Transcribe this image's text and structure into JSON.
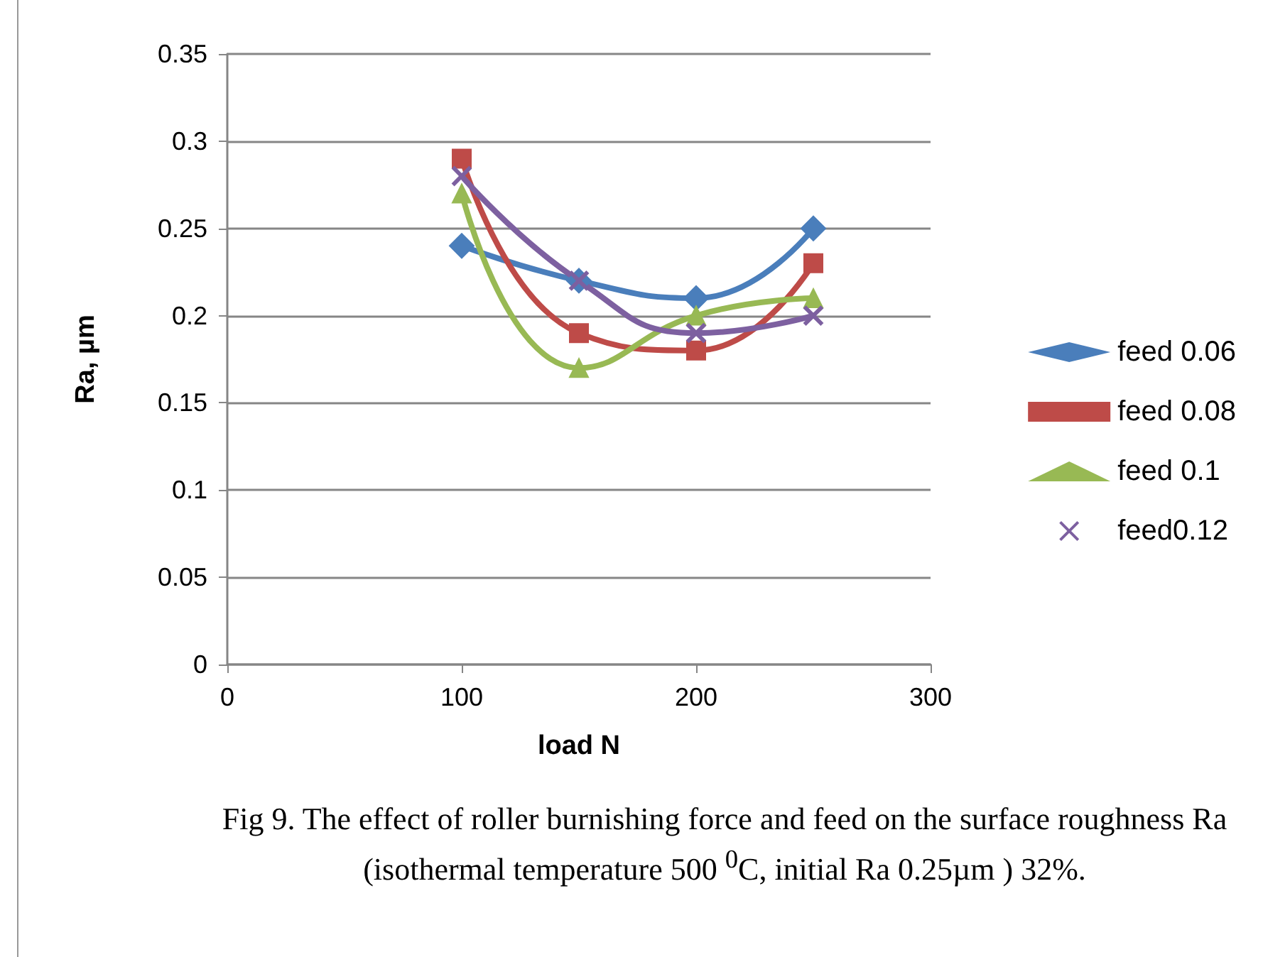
{
  "chart_data": {
    "type": "line",
    "xlabel": "load N",
    "ylabel": "Ra, µm",
    "annotations": [
      "Fig 9. The effect of roller burnishing force and feed on the surface roughness Ra (isothermal temperature 500 $^{0}$C, initial Ra 0.25µm ) 32%."
    ],
    "x": [
      100,
      150,
      200,
      250
    ],
    "series": [
      {
        "name": "feed 0.06",
        "color": "#4a7ebb",
        "marker": "diamond",
        "values": [
          0.24,
          0.22,
          0.21,
          0.25
        ]
      },
      {
        "name": "feed 0.08",
        "color": "#be4b48",
        "marker": "square",
        "values": [
          0.29,
          0.19,
          0.18,
          0.23
        ]
      },
      {
        "name": "feed 0.1",
        "color": "#98b954",
        "marker": "triangle",
        "values": [
          0.27,
          0.17,
          0.2,
          0.21
        ]
      },
      {
        "name": "feed0.12",
        "color": "#7d60a0",
        "marker": "cross",
        "values": [
          0.28,
          0.22,
          0.19,
          0.2
        ]
      }
    ],
    "xlim": [
      0,
      300
    ],
    "xticks": [
      0,
      100,
      200,
      300
    ],
    "ylim": [
      0,
      0.35
    ],
    "yticks": [
      0,
      0.05,
      0.1,
      0.15,
      0.2,
      0.25,
      0.3,
      0.35
    ],
    "grid": "y",
    "legend": "right",
    "line_style": "solid"
  }
}
